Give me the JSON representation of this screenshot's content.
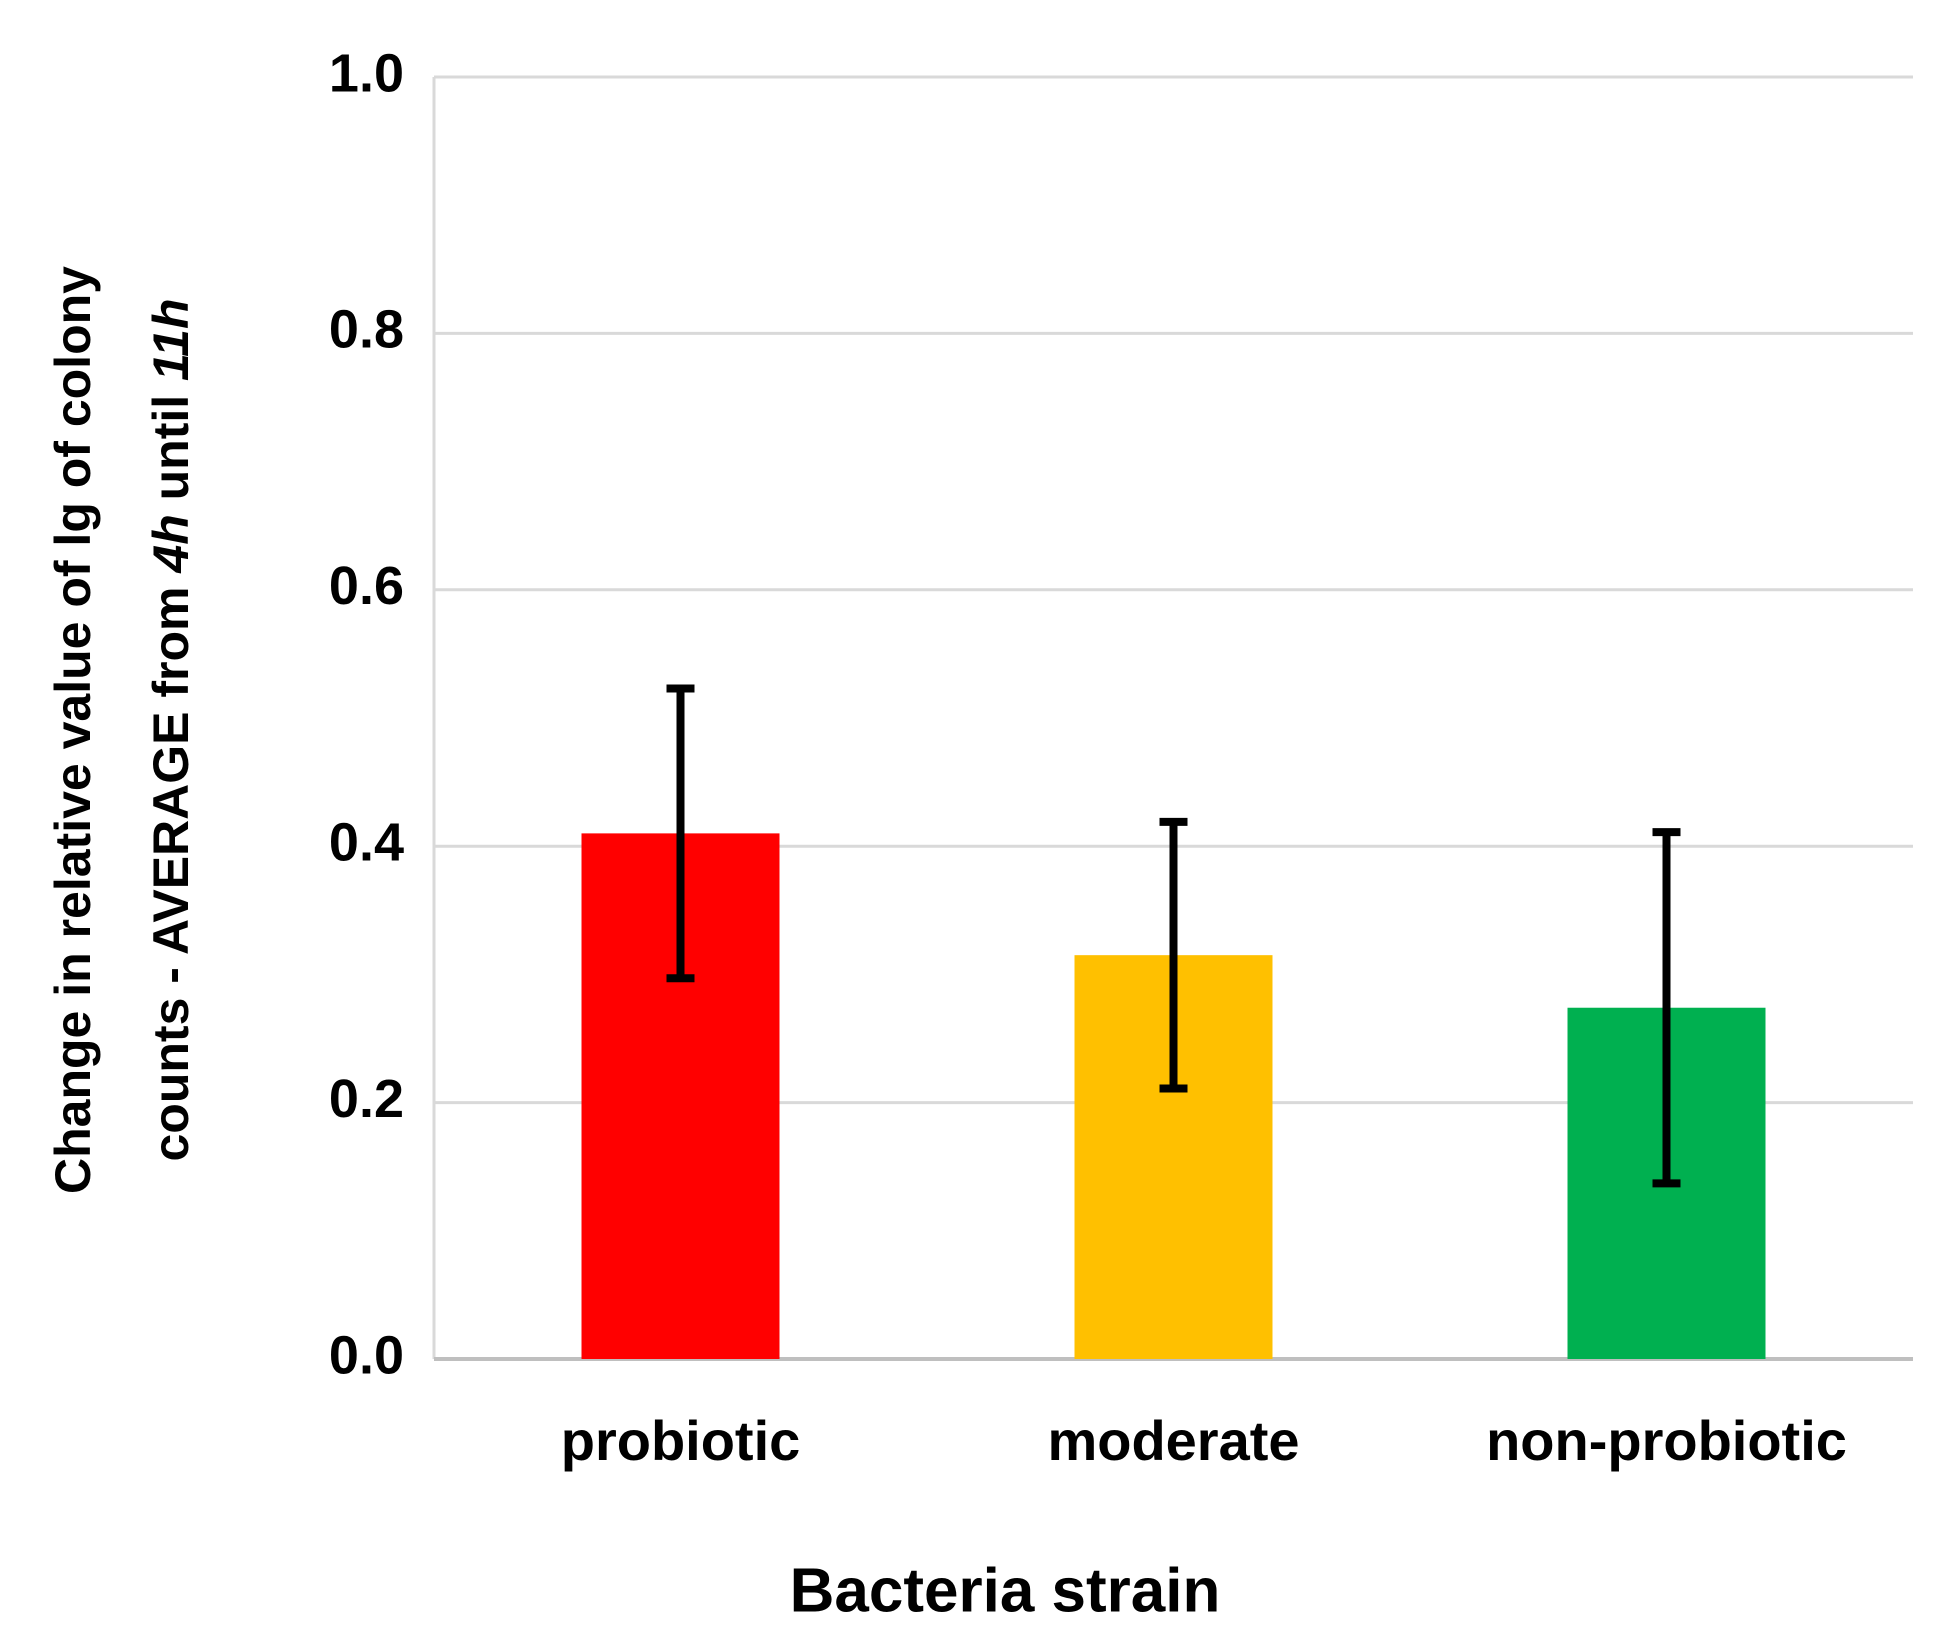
{
  "chart_data": {
    "type": "bar",
    "ylabel": [
      [
        {
          "text": "Change in relative value of lg of colony",
          "italic": false
        }
      ],
      [
        {
          "text": "counts - AVERAGE from ",
          "italic": false
        },
        {
          "text": "4h",
          "italic": true
        },
        {
          "text": " until ",
          "italic": false
        },
        {
          "text": "11h",
          "italic": true
        }
      ]
    ],
    "xlabel": "Bacteria strain",
    "categories": [
      "probiotic",
      "moderate",
      "non-probiotic"
    ],
    "values": [
      0.41,
      0.315,
      0.274
    ],
    "errors": [
      0.113,
      0.104,
      0.137
    ],
    "colors": [
      "#ff0000",
      "#ffc000",
      "#00b050"
    ],
    "ylim": [
      0,
      1
    ],
    "yticks": [
      {
        "value": 0,
        "label": "0.0"
      },
      {
        "value": 0.2,
        "label": "0.2"
      },
      {
        "value": 0.4,
        "label": "0.4"
      },
      {
        "value": 0.6,
        "label": "0.6"
      },
      {
        "value": 0.8,
        "label": "0.8"
      },
      {
        "value": 1,
        "label": "1.0"
      }
    ],
    "grid": true
  }
}
